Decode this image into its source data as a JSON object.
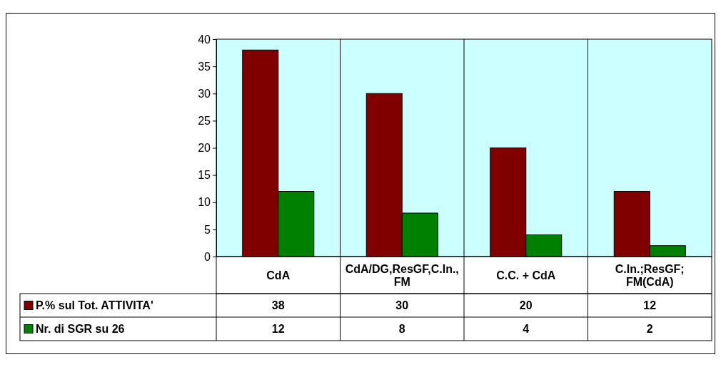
{
  "chart_data": {
    "type": "bar",
    "categories": [
      "CdA",
      "CdA/DG,ResGF,C.In.,FM",
      "C.C. + CdA",
      "C.In.;ResGF;FM(CdA)"
    ],
    "series": [
      {
        "name": "P.% sul Tot. ATTIVITA'",
        "color": "#800000",
        "values": [
          38,
          30,
          20,
          12
        ]
      },
      {
        "name": "Nr. di SGR su 26",
        "color": "#008000",
        "values": [
          12,
          8,
          4,
          2
        ]
      }
    ],
    "ylim": [
      0,
      40
    ],
    "yticks": [
      0,
      5,
      10,
      15,
      20,
      25,
      30,
      35,
      40
    ],
    "grid": "x",
    "legend": "bottom",
    "data_labels": true
  }
}
